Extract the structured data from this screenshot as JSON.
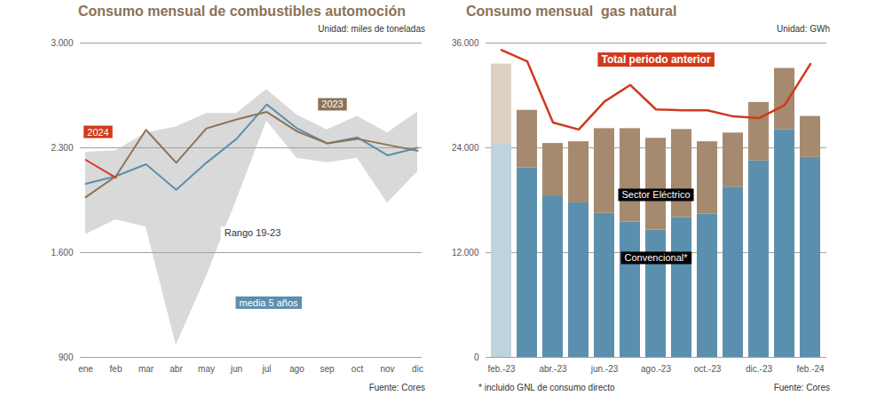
{
  "chart_data": [
    {
      "type": "line",
      "title": "Consumo mensual de combustibles automoción",
      "subtitle": "Unidad: miles de toneladas",
      "source": "Fuente: Cores",
      "categories": [
        "ene",
        "feb",
        "mar",
        "abr",
        "may",
        "jun",
        "jul",
        "ago",
        "sep",
        "oct",
        "nov",
        "dic"
      ],
      "ylim": [
        900,
        3000
      ],
      "yticks": [
        900,
        {
          "value": 1600,
          "label": "1.600"
        },
        {
          "value": 2300,
          "label": "2.300"
        },
        {
          "value": 3000,
          "label": "3.000"
        }
      ],
      "grid": true,
      "series": [
        {
          "name": "Rango 19-23",
          "type": "area",
          "color": "#d9d9d9",
          "low": [
            1720,
            1820,
            1770,
            980,
            1440,
            1950,
            2480,
            2230,
            2200,
            2230,
            1930,
            2140
          ],
          "values": [
            2270,
            2280,
            2400,
            2440,
            2530,
            2530,
            2690,
            2520,
            2420,
            2510,
            2400,
            2540
          ]
        },
        {
          "name": "media 5 años",
          "type": "line",
          "color": "#5b8fae",
          "values": [
            2060,
            2110,
            2190,
            2020,
            2200,
            2360,
            2590,
            2430,
            2330,
            2370,
            2250,
            2300
          ]
        },
        {
          "name": "2023",
          "type": "line",
          "color": "#8c7358",
          "values": [
            1970,
            2110,
            2420,
            2200,
            2430,
            2490,
            2540,
            2410,
            2330,
            2360,
            2320,
            2280
          ]
        },
        {
          "name": "2024",
          "type": "line",
          "color": "#d03a1c",
          "values": [
            2220,
            2100,
            null,
            null,
            null,
            null,
            null,
            null,
            null,
            null,
            null,
            null
          ]
        }
      ]
    },
    {
      "type": "bar",
      "title": "Consumo mensual  gas natural",
      "subtitle": "Unidad: GWh",
      "source": "Fuente: Cores",
      "note": "* incluido GNL de consumo directo",
      "stacked": true,
      "categories": [
        "feb.-23",
        null,
        "abr.-23",
        null,
        "jun.-23",
        null,
        "ago.-23",
        null,
        "oct.-23",
        null,
        "dic.-23",
        null,
        "feb.-24"
      ],
      "ylim": [
        0,
        36000
      ],
      "yticks": [
        0,
        {
          "value": 12000,
          "label": "12.000"
        },
        {
          "value": 24000,
          "label": "24.000"
        },
        {
          "value": 36000,
          "label": "36.000"
        }
      ],
      "grid": true,
      "series": [
        {
          "name": "Convencional*",
          "type": "bar",
          "colors": [
            "#bfd3df",
            "#5b8fae",
            "#5b8fae",
            "#5b8fae",
            "#5b8fae",
            "#5b8fae",
            "#5b8fae",
            "#5b8fae",
            "#5b8fae",
            "#5b8fae",
            "#5b8fae",
            "#5b8fae",
            "#5b8fae"
          ],
          "values": [
            24400,
            21700,
            18500,
            17700,
            16500,
            15500,
            14600,
            16000,
            16400,
            19500,
            22500,
            26100,
            22900
          ]
        },
        {
          "name": "Sector Eléctrico",
          "type": "bar",
          "colors": [
            "#ddd1c4",
            "#a58a70",
            "#a58a70",
            "#a58a70",
            "#a58a70",
            "#a58a70",
            "#a58a70",
            "#a58a70",
            "#a58a70",
            "#a58a70",
            "#a58a70",
            "#a58a70",
            "#a58a70"
          ],
          "values": [
            9200,
            6600,
            6000,
            7000,
            9700,
            10700,
            10500,
            10100,
            8300,
            6200,
            6700,
            7000,
            4700
          ]
        },
        {
          "name": "Total periodo anterior",
          "type": "line",
          "color": "#d03a1c",
          "values": [
            35200,
            33900,
            26900,
            26100,
            29300,
            31200,
            28400,
            28300,
            28300,
            27600,
            27400,
            28900,
            33600
          ]
        }
      ]
    }
  ]
}
